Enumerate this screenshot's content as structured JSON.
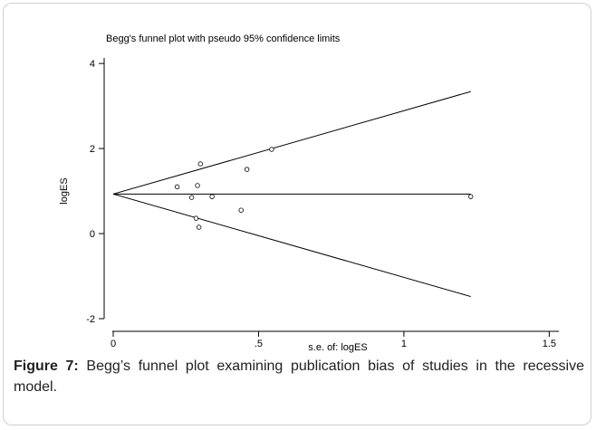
{
  "chart_data": {
    "type": "funnel",
    "title": "Begg's funnel plot with pseudo 95% confidence limits",
    "x_label": "s.e. of: logES",
    "y_label": "logES",
    "x": [
      0.22,
      0.27,
      0.29,
      0.3,
      0.285,
      0.295,
      0.34,
      0.44,
      0.46,
      0.545,
      1.23
    ],
    "values": [
      1.1,
      0.85,
      1.13,
      1.64,
      0.36,
      0.15,
      0.87,
      0.55,
      1.51,
      1.98,
      0.87
    ],
    "color": "#000000",
    "lines": [
      {
        "x": [
          0,
          1.23
        ],
        "values": [
          0.93,
          0.93
        ]
      },
      {
        "x": [
          0,
          1.23
        ],
        "values": [
          0.93,
          3.34
        ]
      },
      {
        "x": [
          0,
          1.23
        ],
        "values": [
          0.93,
          -1.48
        ]
      }
    ],
    "xlim": [
      0,
      1.53
    ],
    "ylim": [
      -2,
      4.13
    ],
    "xticks": [
      0,
      {
        "value": 0.5,
        "label": ".5"
      },
      1,
      {
        "value": 1.5,
        "label": "1.5"
      }
    ],
    "yticks": [
      -2,
      0,
      2,
      4
    ]
  },
  "caption": {
    "label": "Figure 7:",
    "text": " Begg’s funnel plot examining publication bias of studies in the recessive model."
  }
}
